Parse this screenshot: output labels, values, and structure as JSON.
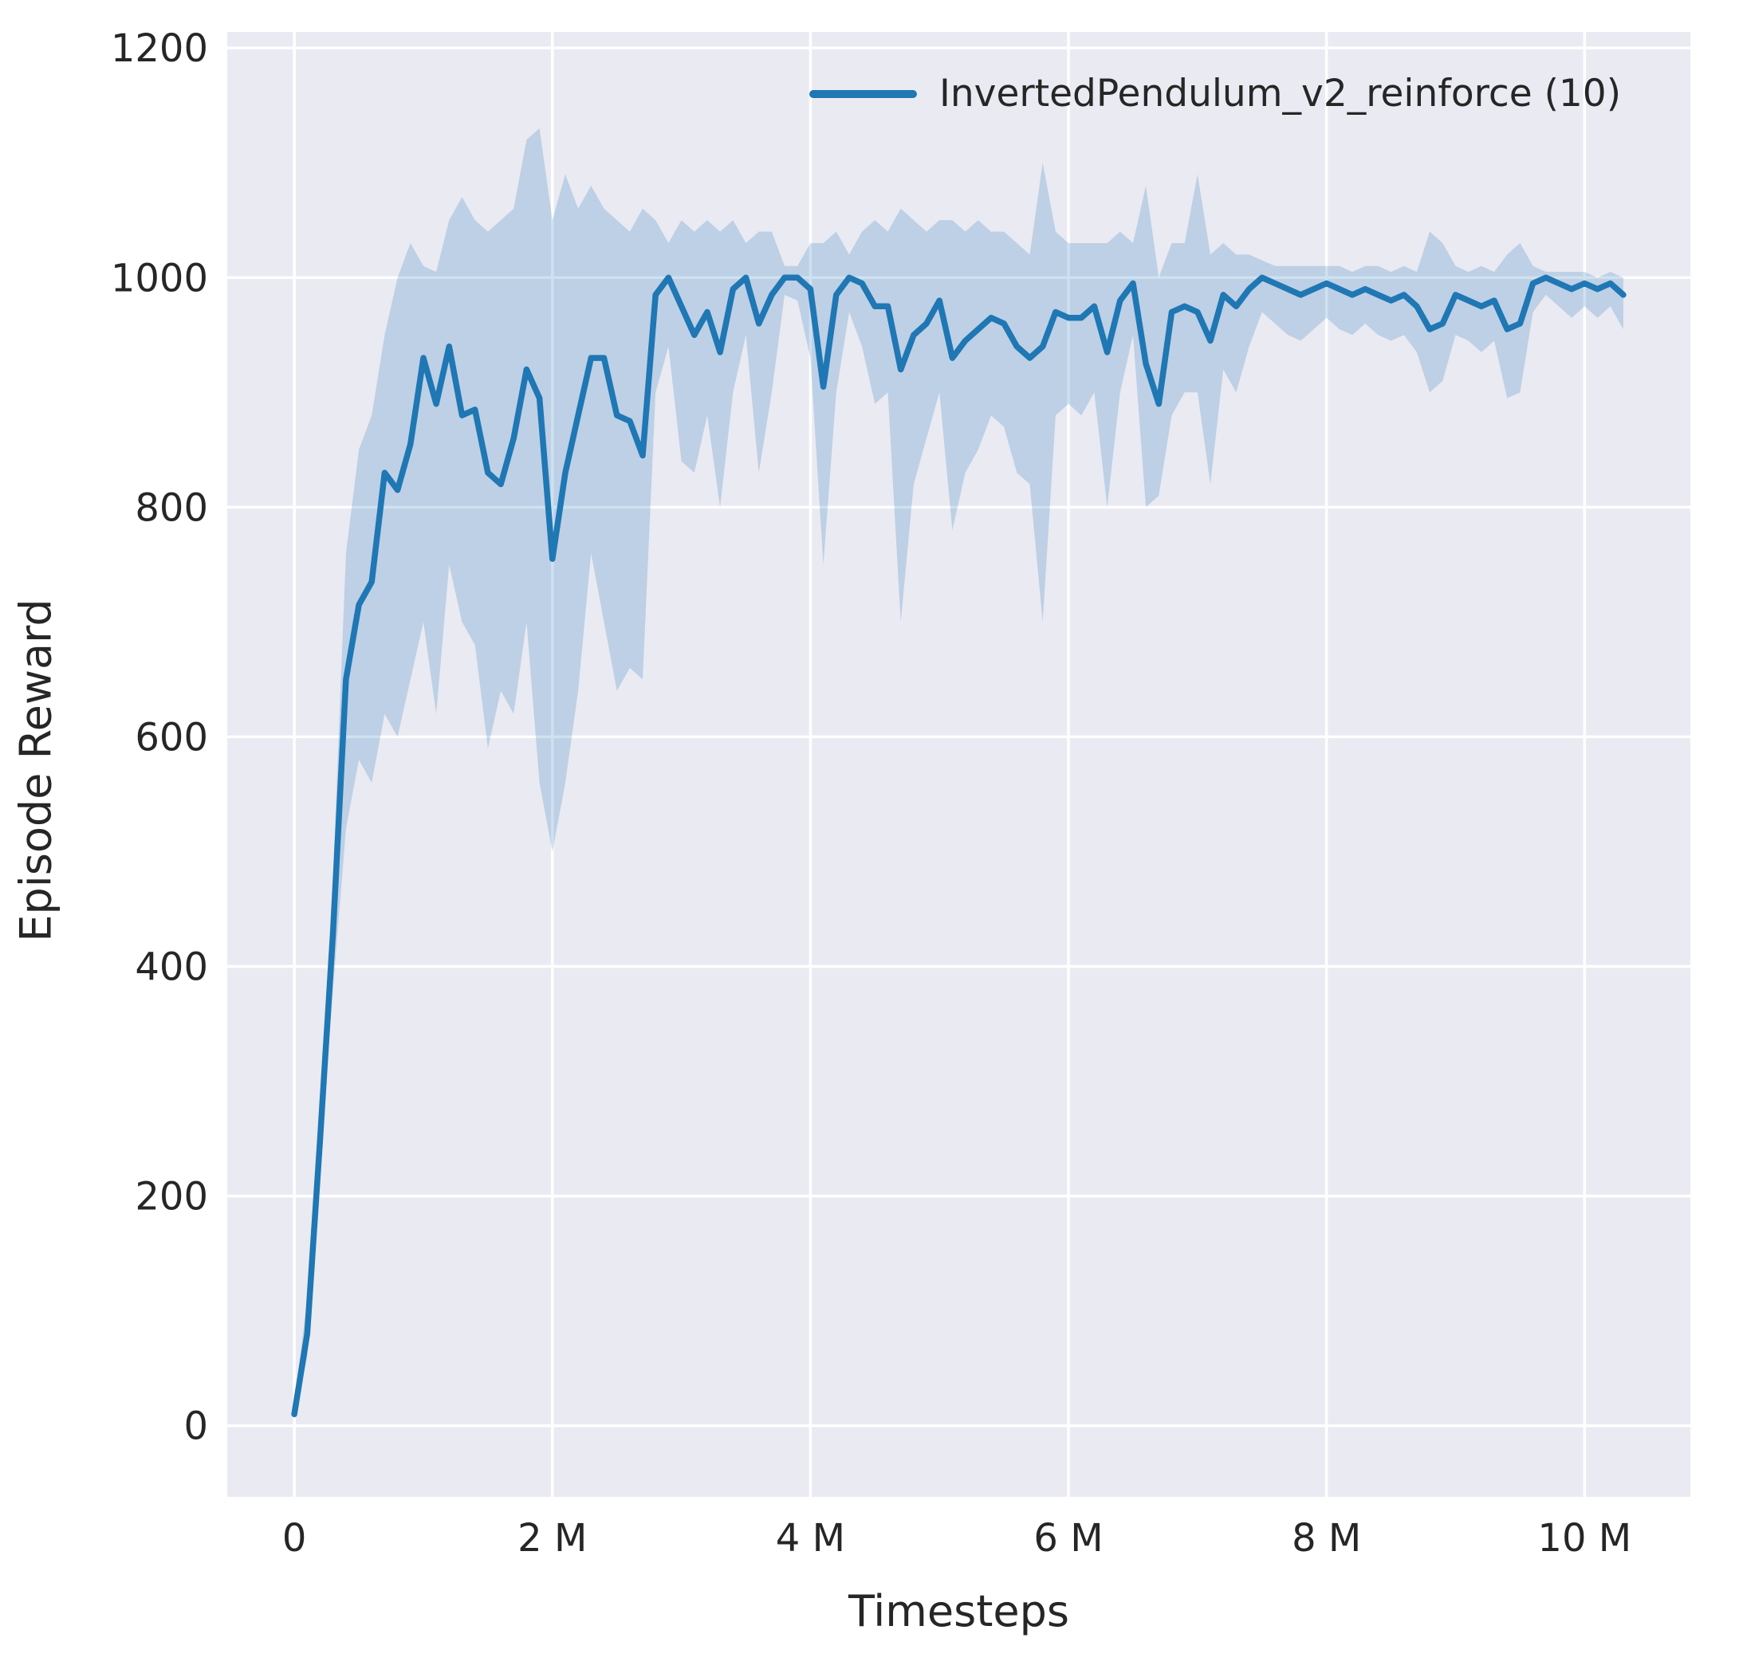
{
  "figure": {
    "xlabel": "Timesteps",
    "ylabel": "Episode Reward",
    "legend": {
      "label": "InvertedPendulum_v2_reinforce (10)"
    }
  },
  "chart_data": {
    "type": "line",
    "title": "",
    "xlabel": "Timesteps",
    "ylabel": "Episode Reward",
    "legend_position": "upper center-right, frameless",
    "grid": true,
    "x_units": "millions of timesteps",
    "xlim": [
      -0.52,
      10.82
    ],
    "ylim": [
      -62,
      1214
    ],
    "x_ticks": {
      "values": [
        0,
        2,
        4,
        6,
        8,
        10
      ],
      "labels": [
        "0",
        "2 M",
        "4 M",
        "6 M",
        "8 M",
        "10 M"
      ]
    },
    "y_ticks": {
      "values": [
        0,
        200,
        400,
        600,
        800,
        1000,
        1200
      ],
      "labels": [
        "0",
        "200",
        "400",
        "600",
        "800",
        "1000",
        "1200"
      ]
    },
    "style": {
      "panel_bg": "#eaeaf2",
      "grid_color": "#ffffff",
      "line_color": "#1f77b4",
      "band_color": "#1f77b4",
      "band_opacity": 0.22,
      "text_color": "#262626"
    },
    "x": [
      0,
      0.1,
      0.2,
      0.3,
      0.4,
      0.5,
      0.6,
      0.7,
      0.8,
      0.9,
      1.0,
      1.1,
      1.2,
      1.3,
      1.4,
      1.5,
      1.6,
      1.7,
      1.8,
      1.9,
      2.0,
      2.1,
      2.2,
      2.3,
      2.4,
      2.5,
      2.6,
      2.7,
      2.8,
      2.9,
      3.0,
      3.1,
      3.2,
      3.3,
      3.4,
      3.5,
      3.6,
      3.7,
      3.8,
      3.9,
      4.0,
      4.1,
      4.2,
      4.3,
      4.4,
      4.5,
      4.6,
      4.7,
      4.8,
      4.9,
      5.0,
      5.1,
      5.2,
      5.3,
      5.4,
      5.5,
      5.6,
      5.7,
      5.8,
      5.9,
      6.0,
      6.1,
      6.2,
      6.3,
      6.4,
      6.5,
      6.6,
      6.7,
      6.8,
      6.9,
      7.0,
      7.1,
      7.2,
      7.3,
      7.4,
      7.5,
      7.6,
      7.7,
      7.8,
      7.9,
      8.0,
      8.1,
      8.2,
      8.3,
      8.4,
      8.5,
      8.6,
      8.7,
      8.8,
      8.9,
      9.0,
      9.1,
      9.2,
      9.3,
      9.4,
      9.5,
      9.6,
      9.7,
      9.8,
      9.9,
      10.0,
      10.1,
      10.2,
      10.3
    ],
    "series": [
      {
        "name": "InvertedPendulum_v2_reinforce (10)",
        "mean": [
          10,
          80,
          250,
          430,
          650,
          715,
          735,
          830,
          815,
          855,
          930,
          890,
          940,
          880,
          885,
          830,
          820,
          860,
          920,
          895,
          755,
          830,
          880,
          930,
          930,
          880,
          875,
          845,
          985,
          1000,
          975,
          950,
          970,
          935,
          990,
          1000,
          960,
          985,
          1000,
          1000,
          990,
          905,
          985,
          1000,
          995,
          975,
          975,
          920,
          950,
          960,
          980,
          930,
          945,
          955,
          965,
          960,
          940,
          930,
          940,
          970,
          965,
          965,
          975,
          935,
          980,
          995,
          925,
          890,
          970,
          975,
          970,
          945,
          985,
          975,
          990,
          1000,
          995,
          990,
          985,
          990,
          995,
          990,
          985,
          990,
          985,
          980,
          985,
          975,
          955,
          960,
          985,
          980,
          975,
          980,
          955,
          960,
          995,
          1000,
          995,
          990,
          995,
          990,
          995,
          985
        ],
        "lower": [
          5,
          60,
          230,
          380,
          520,
          580,
          560,
          620,
          600,
          650,
          700,
          620,
          750,
          700,
          680,
          590,
          640,
          620,
          700,
          560,
          500,
          560,
          640,
          760,
          700,
          640,
          660,
          650,
          900,
          940,
          840,
          830,
          880,
          800,
          900,
          950,
          830,
          900,
          985,
          980,
          930,
          750,
          900,
          970,
          940,
          890,
          900,
          700,
          820,
          860,
          900,
          780,
          830,
          850,
          880,
          870,
          830,
          820,
          700,
          880,
          890,
          880,
          900,
          800,
          900,
          950,
          800,
          810,
          880,
          900,
          900,
          820,
          920,
          900,
          940,
          970,
          960,
          950,
          945,
          955,
          965,
          955,
          950,
          960,
          950,
          945,
          950,
          935,
          900,
          910,
          950,
          945,
          935,
          945,
          895,
          900,
          970,
          985,
          975,
          965,
          975,
          965,
          975,
          955
        ],
        "upper": [
          20,
          110,
          280,
          480,
          760,
          850,
          880,
          950,
          1000,
          1030,
          1010,
          1005,
          1050,
          1070,
          1050,
          1040,
          1050,
          1060,
          1120,
          1130,
          1050,
          1090,
          1060,
          1080,
          1060,
          1050,
          1040,
          1060,
          1050,
          1030,
          1050,
          1040,
          1050,
          1040,
          1050,
          1030,
          1040,
          1040,
          1010,
          1010,
          1030,
          1030,
          1040,
          1020,
          1040,
          1050,
          1040,
          1060,
          1050,
          1040,
          1050,
          1050,
          1040,
          1050,
          1040,
          1040,
          1030,
          1020,
          1100,
          1040,
          1030,
          1030,
          1030,
          1030,
          1040,
          1030,
          1080,
          1000,
          1030,
          1030,
          1090,
          1020,
          1030,
          1020,
          1020,
          1015,
          1010,
          1010,
          1010,
          1010,
          1010,
          1010,
          1005,
          1010,
          1010,
          1005,
          1010,
          1005,
          1040,
          1030,
          1010,
          1005,
          1010,
          1005,
          1020,
          1030,
          1010,
          1005,
          1005,
          1005,
          1005,
          1000,
          1005,
          1000
        ]
      }
    ]
  }
}
